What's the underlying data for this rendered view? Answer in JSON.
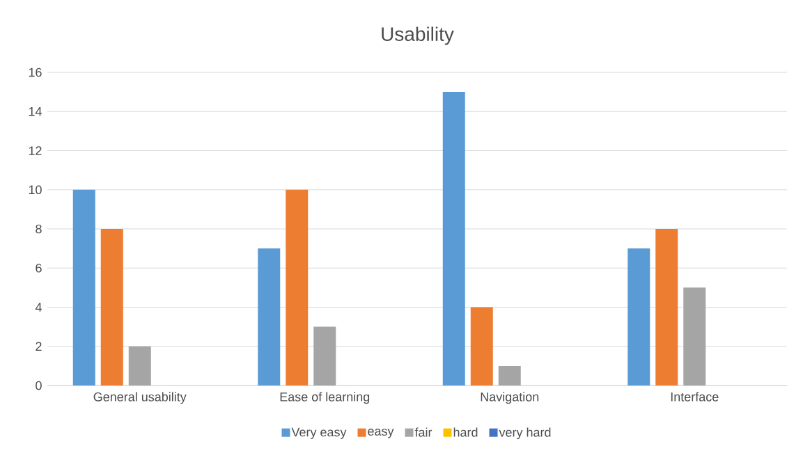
{
  "chart_data": {
    "type": "bar",
    "title": "Usability",
    "categories": [
      "General usability",
      "Ease of learning",
      "Navigation",
      "Interface"
    ],
    "series": [
      {
        "name": "Very easy",
        "color": "#5b9bd5",
        "values": [
          10,
          7,
          15,
          7
        ]
      },
      {
        "name": "easy",
        "color": "#ed7d31",
        "values": [
          8,
          10,
          4,
          8
        ]
      },
      {
        "name": "fair",
        "color": "#a5a5a5",
        "values": [
          2,
          3,
          1,
          5
        ]
      },
      {
        "name": "hard",
        "color": "#ffc000",
        "values": [
          0,
          0,
          0,
          0
        ]
      },
      {
        "name": "very hard",
        "color": "#4472c4",
        "values": [
          0,
          0,
          0,
          0
        ]
      }
    ],
    "ylim": [
      0,
      16
    ],
    "yticks": [
      0,
      2,
      4,
      6,
      8,
      10,
      12,
      14,
      16
    ],
    "grid": "y",
    "legend": "bottom"
  }
}
